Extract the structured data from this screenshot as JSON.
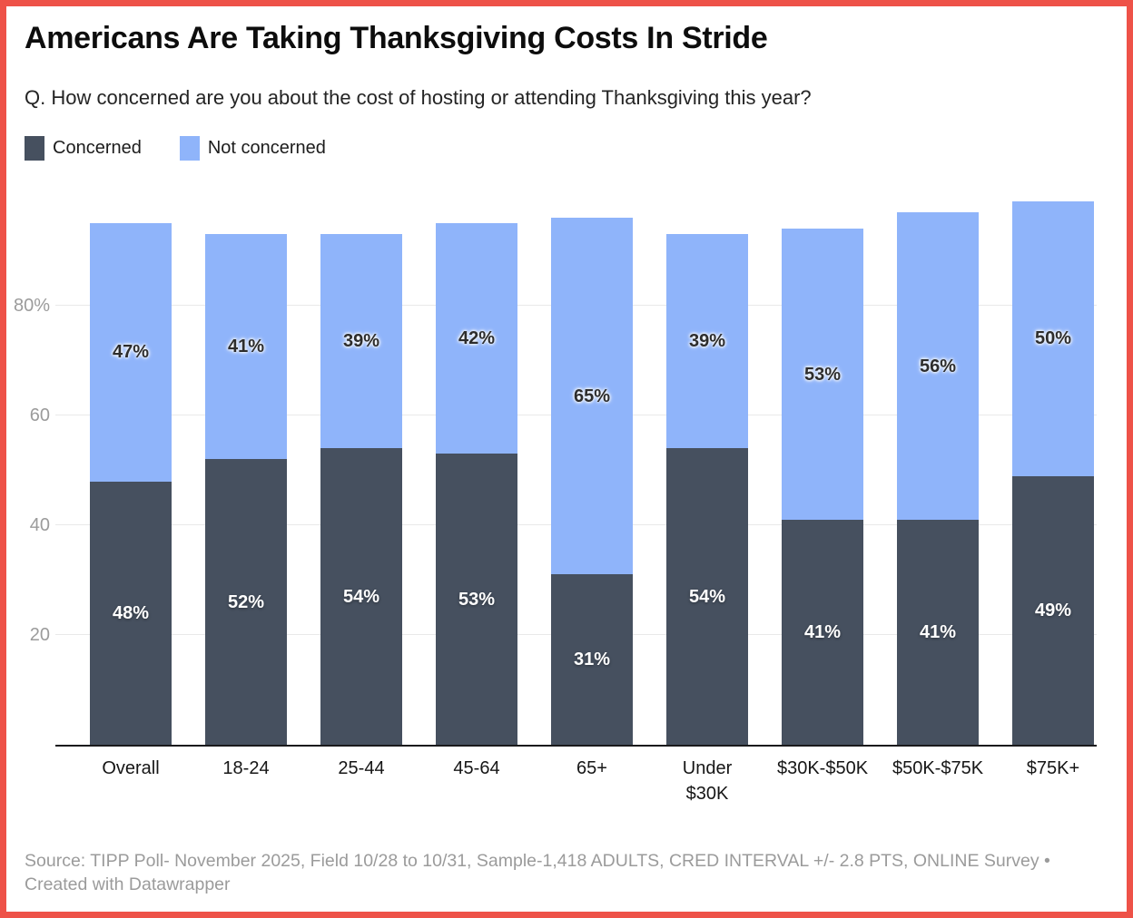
{
  "header": {
    "title": "Americans Are Taking Thanksgiving Costs In Stride",
    "subtitle": "Q. How concerned are you about the cost of hosting or attending Thanksgiving this year?"
  },
  "legend": {
    "items": [
      {
        "label": "Concerned",
        "color": "#46505f"
      },
      {
        "label": "Not concerned",
        "color": "#8fb4fa"
      }
    ]
  },
  "chart_data": {
    "type": "bar",
    "stacked": true,
    "title": "Americans Are Taking Thanksgiving Costs In Stride",
    "categories": [
      "Overall",
      "18-24",
      "25-44",
      "45-64",
      "65+",
      "Under $30K",
      "$30K-$50K",
      "$50K-$75K",
      "$75K+"
    ],
    "tick_labels": [
      "Overall",
      "18-24",
      "25-44",
      "45-64",
      "65+",
      "Under\n$30K",
      "$30K-$50K",
      "$50K-$75K",
      "$75K+"
    ],
    "series": [
      {
        "name": "Concerned",
        "color": "#46505f",
        "values": [
          48,
          52,
          54,
          53,
          31,
          54,
          41,
          41,
          49
        ]
      },
      {
        "name": "Not concerned",
        "color": "#8fb4fa",
        "values": [
          47,
          41,
          39,
          42,
          65,
          39,
          53,
          56,
          50
        ]
      }
    ],
    "value_suffix": "%",
    "xlabel": "",
    "ylabel": "",
    "ylim": [
      0,
      100
    ],
    "y_ticks": [
      20,
      40,
      60,
      80
    ],
    "y_tick_labels": [
      "20",
      "40",
      "60",
      "80%"
    ],
    "grid": "horizontal",
    "legend_position": "top-left"
  },
  "footer": {
    "source": "Source: TIPP Poll- November 2025, Field 10/28 to 10/31, Sample-1,418 ADULTS, CRED INTERVAL +/- 2.8 PTS, ONLINE Survey",
    "separator": "•",
    "attribution": "Created with Datawrapper"
  },
  "colors": {
    "border": "#ee5248",
    "grid": "#e9e9e9",
    "axis_text": "#9b9b9b",
    "baseline": "#1a1a1c"
  }
}
